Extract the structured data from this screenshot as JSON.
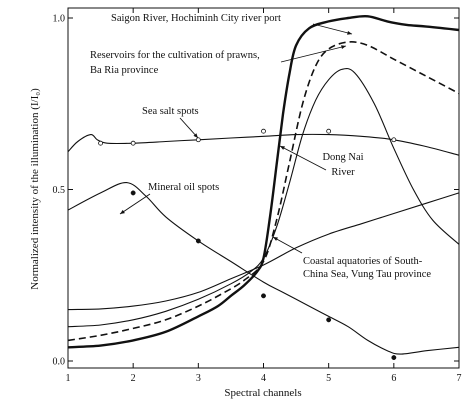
{
  "chart_data": {
    "type": "line",
    "xlabel": "Spectral channels",
    "ylabel": "Normalized intensity of the illumination (I/I₀)",
    "xlim": [
      1,
      7
    ],
    "ylim": [
      0,
      1.02
    ],
    "xticks": [
      "1",
      "2",
      "3",
      "4",
      "5",
      "6",
      "7"
    ],
    "yticks": [
      {
        "value": 0.0,
        "label": "0.0"
      },
      {
        "value": 0.5,
        "label": "0.5"
      },
      {
        "value": 1.0,
        "label": "1.0"
      }
    ],
    "grid": false,
    "series": [
      {
        "name": "Saigon River, Hochiminh City river port",
        "style": "thick",
        "points": [
          [
            1,
            0.04
          ],
          [
            1.5,
            0.045
          ],
          [
            2,
            0.06
          ],
          [
            2.5,
            0.085
          ],
          [
            3,
            0.13
          ],
          [
            3.3,
            0.16
          ],
          [
            3.5,
            0.19
          ],
          [
            3.7,
            0.22
          ],
          [
            3.9,
            0.26
          ],
          [
            4,
            0.3
          ],
          [
            4.1,
            0.42
          ],
          [
            4.2,
            0.57
          ],
          [
            4.3,
            0.72
          ],
          [
            4.4,
            0.84
          ],
          [
            4.5,
            0.92
          ],
          [
            4.7,
            0.97
          ],
          [
            5,
            0.99
          ],
          [
            5.3,
            1.0
          ],
          [
            5.6,
            1.005
          ],
          [
            5.9,
            0.99
          ],
          [
            6.2,
            0.98
          ],
          [
            6.5,
            0.975
          ],
          [
            7,
            0.965
          ]
        ]
      },
      {
        "name": "Reservoirs for the cultivation of prawns, Ba Ria province",
        "style": "dashed",
        "points": [
          [
            1,
            0.06
          ],
          [
            1.5,
            0.075
          ],
          [
            2,
            0.095
          ],
          [
            2.5,
            0.12
          ],
          [
            3,
            0.16
          ],
          [
            3.4,
            0.2
          ],
          [
            3.7,
            0.235
          ],
          [
            4,
            0.29
          ],
          [
            4.2,
            0.41
          ],
          [
            4.4,
            0.58
          ],
          [
            4.6,
            0.75
          ],
          [
            4.8,
            0.86
          ],
          [
            5,
            0.91
          ],
          [
            5.3,
            0.93
          ],
          [
            5.6,
            0.92
          ],
          [
            6,
            0.88
          ],
          [
            6.5,
            0.83
          ],
          [
            7,
            0.78
          ]
        ]
      },
      {
        "name": "Sea salt spots",
        "style": "solid",
        "points": [
          [
            1,
            0.61
          ],
          [
            1.15,
            0.64
          ],
          [
            1.35,
            0.66
          ],
          [
            1.45,
            0.645
          ],
          [
            1.6,
            0.635
          ],
          [
            2,
            0.635
          ],
          [
            2.5,
            0.64
          ],
          [
            3,
            0.645
          ],
          [
            3.5,
            0.65
          ],
          [
            4,
            0.655
          ],
          [
            4.5,
            0.66
          ],
          [
            5,
            0.66
          ],
          [
            5.5,
            0.655
          ],
          [
            6,
            0.645
          ],
          [
            6.5,
            0.625
          ],
          [
            7,
            0.6
          ]
        ],
        "markers": [
          [
            1.5,
            0.635
          ],
          [
            2,
            0.635
          ],
          [
            3,
            0.645
          ],
          [
            4,
            0.67
          ],
          [
            5,
            0.67
          ],
          [
            6,
            0.645
          ]
        ]
      },
      {
        "name": "Dong Nai River",
        "style": "solid",
        "points": [
          [
            1,
            0.1
          ],
          [
            1.5,
            0.105
          ],
          [
            2,
            0.12
          ],
          [
            2.5,
            0.145
          ],
          [
            3,
            0.18
          ],
          [
            3.5,
            0.225
          ],
          [
            3.8,
            0.26
          ],
          [
            4,
            0.3
          ],
          [
            4.2,
            0.39
          ],
          [
            4.4,
            0.52
          ],
          [
            4.6,
            0.66
          ],
          [
            4.8,
            0.76
          ],
          [
            5,
            0.82
          ],
          [
            5.2,
            0.85
          ],
          [
            5.4,
            0.84
          ],
          [
            5.7,
            0.75
          ],
          [
            6,
            0.62
          ],
          [
            6.3,
            0.5
          ],
          [
            6.6,
            0.41
          ],
          [
            7,
            0.34
          ]
        ]
      },
      {
        "name": "Mineral oil spots",
        "style": "solid",
        "points": [
          [
            1,
            0.44
          ],
          [
            1.5,
            0.49
          ],
          [
            1.9,
            0.52
          ],
          [
            2.2,
            0.48
          ],
          [
            2.5,
            0.42
          ],
          [
            3,
            0.35
          ],
          [
            3.5,
            0.29
          ],
          [
            4,
            0.23
          ],
          [
            4.3,
            0.2
          ],
          [
            4.7,
            0.16
          ],
          [
            5,
            0.13
          ],
          [
            5.3,
            0.1
          ],
          [
            5.6,
            0.06
          ],
          [
            5.9,
            0.03
          ],
          [
            6.1,
            0.02
          ],
          [
            6.5,
            0.03
          ],
          [
            7,
            0.04
          ]
        ],
        "markers": [
          [
            2,
            0.49
          ],
          [
            3,
            0.35
          ],
          [
            4,
            0.19
          ],
          [
            5,
            0.12
          ],
          [
            6,
            0.01
          ]
        ]
      },
      {
        "name": "Coastal aquatories of South-China Sea, Vung Tau province",
        "style": "solid",
        "points": [
          [
            1,
            0.15
          ],
          [
            1.5,
            0.152
          ],
          [
            2,
            0.16
          ],
          [
            2.5,
            0.175
          ],
          [
            3,
            0.2
          ],
          [
            3.5,
            0.24
          ],
          [
            4,
            0.28
          ],
          [
            4.5,
            0.33
          ],
          [
            5,
            0.37
          ],
          [
            5.5,
            0.4
          ],
          [
            6,
            0.43
          ],
          [
            6.5,
            0.46
          ],
          [
            7,
            0.49
          ]
        ]
      }
    ],
    "annotations": [
      {
        "text": "Saigon River, Hochiminh City river port",
        "lines": [
          "Saigon River, Hochiminh City river port"
        ]
      },
      {
        "text": "Reservoirs for the cultivation of prawns, Ba Ria province",
        "lines": [
          "Reservoirs for the cultivation of prawns,",
          "Ba Ria province"
        ]
      },
      {
        "text": "Sea salt spots",
        "lines": [
          "Sea salt spots"
        ]
      },
      {
        "text": "Dong Nai River",
        "lines": [
          "Dong Nai",
          "River"
        ]
      },
      {
        "text": "Mineral oil spots",
        "lines": [
          "Mineral oil spots"
        ]
      },
      {
        "text": "Coastal aquatories of South-China Sea, Vung Tau province",
        "lines": [
          "Coastal aquatories of South-",
          "China Sea, Vung Tau province"
        ]
      }
    ]
  }
}
